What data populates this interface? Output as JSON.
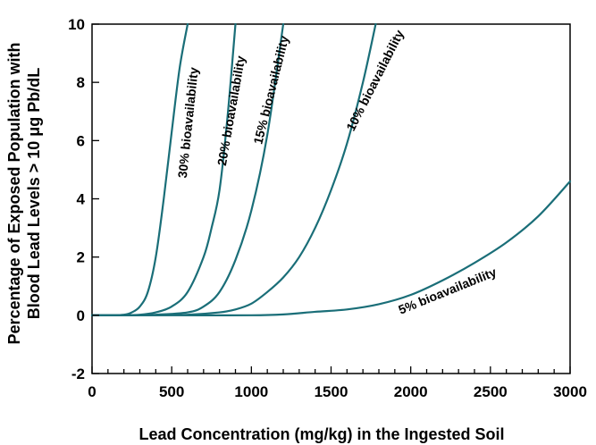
{
  "chart_data": {
    "type": "line",
    "xlabel": "Lead Concentration (mg/kg) in the Ingested Soil",
    "ylabel_lines": [
      "Percentage of Exposed Population with",
      "Blood Lead Levels > 10 μg Pb/dL"
    ],
    "xlim": [
      0,
      3000
    ],
    "ylim": [
      -2,
      10
    ],
    "x_ticks": [
      0,
      500,
      1000,
      1500,
      2000,
      2500,
      3000
    ],
    "x_tick_labels": [
      "0",
      "500",
      "1000",
      "1500",
      "2000",
      "2500",
      "3000"
    ],
    "x_minor_step": 100,
    "y_ticks": [
      -2,
      0,
      2,
      4,
      6,
      8,
      10
    ],
    "y_tick_labels": [
      "-2",
      "0",
      "2",
      "4",
      "6",
      "8",
      "10"
    ],
    "grid": false,
    "legend": "none",
    "line_color": "#1a6e78",
    "series": [
      {
        "name": "30% bioavailability",
        "points": [
          [
            0,
            0
          ],
          [
            100,
            0
          ],
          [
            200,
            0.02
          ],
          [
            250,
            0.1
          ],
          [
            300,
            0.3
          ],
          [
            350,
            0.8
          ],
          [
            400,
            2.0
          ],
          [
            450,
            4.0
          ],
          [
            500,
            6.3
          ],
          [
            550,
            8.5
          ],
          [
            600,
            10
          ]
        ]
      },
      {
        "name": "20% bioavailability",
        "points": [
          [
            0,
            0
          ],
          [
            150,
            0
          ],
          [
            300,
            0.02
          ],
          [
            400,
            0.1
          ],
          [
            500,
            0.3
          ],
          [
            600,
            0.8
          ],
          [
            700,
            2.0
          ],
          [
            750,
            3.0
          ],
          [
            800,
            4.3
          ],
          [
            850,
            6.8
          ],
          [
            900,
            10
          ]
        ]
      },
      {
        "name": "15% bioavailability",
        "points": [
          [
            0,
            0
          ],
          [
            200,
            0
          ],
          [
            400,
            0.02
          ],
          [
            600,
            0.1
          ],
          [
            700,
            0.3
          ],
          [
            800,
            0.8
          ],
          [
            900,
            1.9
          ],
          [
            1000,
            3.6
          ],
          [
            1100,
            6.2
          ],
          [
            1200,
            10
          ]
        ]
      },
      {
        "name": "10% bioavailability",
        "points": [
          [
            0,
            0
          ],
          [
            300,
            0
          ],
          [
            600,
            0.02
          ],
          [
            800,
            0.1
          ],
          [
            900,
            0.2
          ],
          [
            1000,
            0.4
          ],
          [
            1100,
            0.8
          ],
          [
            1200,
            1.3
          ],
          [
            1300,
            2.0
          ],
          [
            1400,
            3.0
          ],
          [
            1500,
            4.3
          ],
          [
            1600,
            5.9
          ],
          [
            1700,
            8.0
          ],
          [
            1780,
            10
          ]
        ]
      },
      {
        "name": "5% bioavailability",
        "points": [
          [
            0,
            0
          ],
          [
            500,
            0
          ],
          [
            1000,
            0
          ],
          [
            1200,
            0.03
          ],
          [
            1400,
            0.12
          ],
          [
            1600,
            0.2
          ],
          [
            1800,
            0.38
          ],
          [
            2000,
            0.7
          ],
          [
            2200,
            1.2
          ],
          [
            2400,
            1.8
          ],
          [
            2600,
            2.5
          ],
          [
            2800,
            3.4
          ],
          [
            3000,
            4.6
          ]
        ]
      }
    ],
    "series_labels": [
      {
        "text": "30% bioavailability",
        "x": 630,
        "y": 6.6,
        "angle": -84
      },
      {
        "text": "20% bioavailability",
        "x": 900,
        "y": 7.0,
        "angle": -80
      },
      {
        "text": "15% bioavailability",
        "x": 1150,
        "y": 7.7,
        "angle": -76
      },
      {
        "text": "10% bioavailability",
        "x": 1800,
        "y": 8.0,
        "angle": -63
      },
      {
        "text": "5% bioavailability",
        "x": 2240,
        "y": 0.7,
        "angle": -22
      }
    ]
  }
}
